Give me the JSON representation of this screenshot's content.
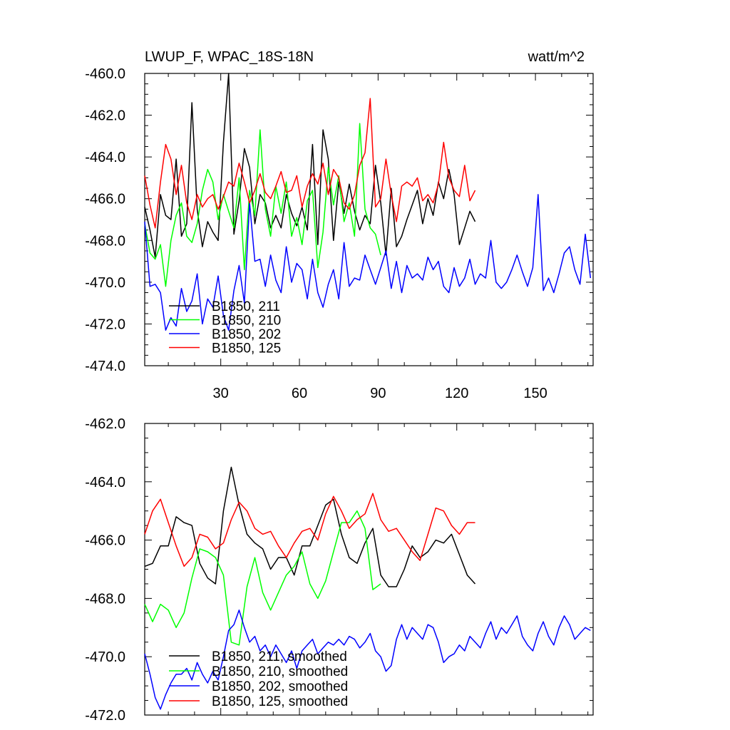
{
  "figure": {
    "title_left": "LWUP_F, WPAC_18S-18N",
    "title_right": "watt/m^2"
  },
  "chart_data": [
    {
      "type": "line",
      "title": "LWUP_F, WPAC_18S-18N",
      "units": "watt/m^2",
      "xlabel": "",
      "ylabel": "",
      "xlim": [
        1,
        172
      ],
      "ylim": [
        -474,
        -460
      ],
      "x_ticks": [
        30,
        60,
        90,
        120,
        150
      ],
      "x_tick_labels": [
        "30",
        "60",
        "90",
        "120",
        "150"
      ],
      "y_ticks": [
        -474,
        -472,
        -470,
        -468,
        -466,
        -464,
        -462,
        -460
      ],
      "y_tick_labels": [
        "-474.0",
        "-472.0",
        "-470.0",
        "-468.0",
        "-466.0",
        "-464.0",
        "-462.0",
        "-460.0"
      ],
      "legend_position": "bottom-left",
      "series": [
        {
          "name": "B1850, 211",
          "color": "#000000",
          "x": [
            1,
            3,
            5,
            7,
            9,
            11,
            13,
            15,
            17,
            19,
            21,
            23,
            25,
            27,
            29,
            31,
            33,
            35,
            37,
            39,
            41,
            43,
            45,
            47,
            49,
            51,
            53,
            55,
            57,
            59,
            61,
            63,
            65,
            67,
            69,
            71,
            73,
            75,
            77,
            79,
            81,
            83,
            85,
            87,
            89,
            91,
            93,
            95,
            97,
            99,
            101,
            103,
            105,
            107,
            109,
            111,
            113,
            115,
            117,
            119,
            121,
            123,
            125,
            127
          ],
          "y": [
            -466.4,
            -467.5,
            -468.8,
            -465.8,
            -466.8,
            -467.0,
            -464.1,
            -467.8,
            -467.2,
            -461.4,
            -466.5,
            -468.3,
            -467.1,
            -467.6,
            -468.0,
            -463.3,
            -460.0,
            -467.7,
            -466.1,
            -463.6,
            -464.5,
            -467.2,
            -465.8,
            -466.2,
            -467.4,
            -466.8,
            -467.4,
            -465.8,
            -466.7,
            -467.3,
            -466.4,
            -467.5,
            -463.4,
            -468.2,
            -462.7,
            -464.1,
            -468.0,
            -465.2,
            -466.7,
            -465.3,
            -466.6,
            -467.5,
            -466.8,
            -467.2,
            -464.4,
            -466.2,
            -468.7,
            -465.5,
            -468.3,
            -467.8,
            -467.0,
            -466.3,
            -465.6,
            -467.2,
            -466.0,
            -466.8,
            -465.2,
            -466.0,
            -464.6,
            -465.8,
            -468.2,
            -467.4,
            -466.6,
            -467.1
          ]
        },
        {
          "name": "B1850, 210",
          "color": "#00ff00",
          "x": [
            1,
            3,
            5,
            7,
            9,
            11,
            13,
            15,
            17,
            19,
            21,
            23,
            25,
            27,
            29,
            31,
            33,
            35,
            37,
            39,
            41,
            43,
            45,
            47,
            49,
            51,
            53,
            55,
            57,
            59,
            61,
            63,
            65,
            67,
            69,
            71,
            73,
            75,
            77,
            79,
            81,
            83,
            85,
            87,
            89,
            91
          ],
          "y": [
            -467.2,
            -468.6,
            -468.9,
            -468.2,
            -470.2,
            -468.0,
            -466.8,
            -466.2,
            -467.8,
            -468.1,
            -467.2,
            -465.6,
            -464.6,
            -465.2,
            -467.0,
            -465.8,
            -466.6,
            -467.4,
            -465.0,
            -469.4,
            -465.6,
            -466.8,
            -462.7,
            -466.5,
            -467.8,
            -465.4,
            -466.7,
            -465.2,
            -467.8,
            -466.9,
            -468.2,
            -466.1,
            -465.6,
            -469.3,
            -467.6,
            -464.5,
            -466.3,
            -464.9,
            -467.1,
            -466.2,
            -467.8,
            -462.4,
            -466.5,
            -467.4,
            -467.7,
            -468.7
          ]
        },
        {
          "name": "B1850, 202",
          "color": "#0000ff",
          "x": [
            1,
            3,
            5,
            7,
            9,
            11,
            13,
            15,
            17,
            19,
            21,
            23,
            25,
            27,
            29,
            31,
            33,
            35,
            37,
            39,
            41,
            43,
            45,
            47,
            49,
            51,
            53,
            55,
            57,
            59,
            61,
            63,
            65,
            67,
            69,
            71,
            73,
            75,
            77,
            79,
            81,
            83,
            85,
            87,
            89,
            91,
            93,
            95,
            97,
            99,
            101,
            103,
            105,
            107,
            109,
            111,
            113,
            115,
            117,
            119,
            121,
            123,
            125,
            127,
            129,
            131,
            133,
            135,
            137,
            139,
            141,
            143,
            145,
            147,
            149,
            151,
            153,
            155,
            157,
            159,
            161,
            163,
            165,
            167,
            169,
            171
          ],
          "y": [
            -467.1,
            -470.2,
            -470.1,
            -470.5,
            -472.3,
            -471.7,
            -472.1,
            -470.3,
            -471.4,
            -470.9,
            -469.6,
            -472.0,
            -470.8,
            -471.2,
            -469.7,
            -471.6,
            -472.3,
            -470.4,
            -469.2,
            -471.0,
            -466.2,
            -469.0,
            -468.9,
            -470.2,
            -468.7,
            -469.9,
            -470.5,
            -468.3,
            -470.0,
            -469.1,
            -469.4,
            -470.8,
            -468.9,
            -470.5,
            -471.2,
            -470.1,
            -469.4,
            -470.8,
            -468.1,
            -470.2,
            -469.8,
            -469.9,
            -468.7,
            -469.4,
            -470.1,
            -469.3,
            -468.5,
            -470.3,
            -469.0,
            -470.5,
            -469.2,
            -469.8,
            -469.6,
            -469.9,
            -468.8,
            -469.4,
            -469.0,
            -470.2,
            -470.5,
            -469.3,
            -470.2,
            -469.8,
            -468.9,
            -470.1,
            -469.6,
            -469.8,
            -468.0,
            -470.0,
            -470.3,
            -470.0,
            -469.4,
            -468.7,
            -469.5,
            -470.2,
            -469.3,
            -465.8,
            -470.4,
            -469.8,
            -470.5,
            -469.6,
            -468.6,
            -468.3,
            -469.4,
            -470.1,
            -467.7,
            -469.8
          ]
        },
        {
          "name": "B1850, 125",
          "color": "#ff0000",
          "x": [
            1,
            3,
            5,
            7,
            9,
            11,
            13,
            15,
            17,
            19,
            21,
            23,
            25,
            27,
            29,
            31,
            33,
            35,
            37,
            39,
            41,
            43,
            45,
            47,
            49,
            51,
            53,
            55,
            57,
            59,
            61,
            63,
            65,
            67,
            69,
            71,
            73,
            75,
            77,
            79,
            81,
            83,
            85,
            87,
            89,
            91,
            93,
            95,
            97,
            99,
            101,
            103,
            105,
            107,
            109,
            111,
            113,
            115,
            117,
            119,
            121,
            123,
            125,
            127
          ],
          "y": [
            -464.9,
            -466.3,
            -467.4,
            -465.2,
            -463.4,
            -464.1,
            -465.8,
            -464.4,
            -466.2,
            -467.0,
            -465.8,
            -466.4,
            -466.0,
            -465.8,
            -466.5,
            -465.9,
            -465.2,
            -465.4,
            -464.3,
            -465.2,
            -466.2,
            -465.6,
            -464.8,
            -465.7,
            -466.0,
            -465.4,
            -464.7,
            -465.7,
            -465.6,
            -464.9,
            -466.4,
            -465.4,
            -464.8,
            -465.3,
            -464.3,
            -465.8,
            -464.6,
            -465.0,
            -466.2,
            -466.5,
            -465.8,
            -464.4,
            -463.8,
            -461.2,
            -466.4,
            -466.0,
            -464.1,
            -465.8,
            -467.1,
            -465.4,
            -465.2,
            -465.4,
            -465.0,
            -466.1,
            -465.8,
            -466.2,
            -465.3,
            -463.3,
            -465.0,
            -465.6,
            -465.9,
            -464.4,
            -466.1,
            -465.6
          ]
        }
      ]
    },
    {
      "type": "line",
      "title": "",
      "xlabel": "",
      "ylabel": "",
      "xlim": [
        1,
        172
      ],
      "ylim": [
        -472,
        -462
      ],
      "x_ticks": [
        30,
        60,
        90,
        120,
        150
      ],
      "y_ticks": [
        -472,
        -470,
        -468,
        -466,
        -464,
        -462
      ],
      "y_tick_labels": [
        "-472.0",
        "-470.0",
        "-468.0",
        "-466.0",
        "-464.0",
        "-462.0"
      ],
      "legend_position": "bottom-left",
      "series": [
        {
          "name": "B1850, 211, smoothed",
          "color": "#000000",
          "x": [
            1,
            4,
            7,
            10,
            13,
            16,
            19,
            22,
            25,
            28,
            31,
            34,
            37,
            40,
            43,
            46,
            49,
            52,
            55,
            58,
            61,
            64,
            67,
            70,
            73,
            76,
            79,
            82,
            85,
            88,
            91,
            94,
            97,
            100,
            103,
            106,
            109,
            112,
            115,
            118,
            121,
            124,
            127
          ],
          "y": [
            -466.9,
            -466.8,
            -466.2,
            -466.2,
            -465.2,
            -465.4,
            -465.5,
            -466.8,
            -467.3,
            -467.5,
            -465.0,
            -463.5,
            -464.8,
            -465.8,
            -466.1,
            -466.3,
            -467.0,
            -466.6,
            -466.6,
            -467.2,
            -466.2,
            -466.2,
            -465.5,
            -464.8,
            -464.6,
            -465.8,
            -466.6,
            -466.8,
            -466.1,
            -465.6,
            -467.2,
            -467.6,
            -467.6,
            -467.0,
            -466.2,
            -466.6,
            -466.4,
            -466.0,
            -466.1,
            -465.8,
            -466.5,
            -467.2,
            -467.5
          ]
        },
        {
          "name": "B1850, 210, smoothed",
          "color": "#00ff00",
          "x": [
            1,
            4,
            7,
            10,
            13,
            16,
            19,
            22,
            25,
            28,
            31,
            34,
            37,
            40,
            43,
            46,
            49,
            52,
            55,
            58,
            61,
            64,
            67,
            70,
            73,
            76,
            79,
            82,
            85,
            88,
            91
          ],
          "y": [
            -468.2,
            -468.8,
            -468.2,
            -468.4,
            -469.0,
            -468.5,
            -467.3,
            -466.3,
            -466.4,
            -466.6,
            -467.2,
            -469.5,
            -469.6,
            -467.6,
            -466.6,
            -467.8,
            -468.4,
            -467.8,
            -467.2,
            -466.9,
            -466.4,
            -467.5,
            -468.0,
            -467.4,
            -466.4,
            -465.4,
            -465.4,
            -465.0,
            -465.6,
            -467.7,
            -467.5
          ]
        },
        {
          "name": "B1850, 202, smoothed",
          "color": "#0000ff",
          "x": [
            1,
            3,
            5,
            7,
            9,
            11,
            13,
            15,
            17,
            19,
            21,
            23,
            25,
            27,
            29,
            31,
            33,
            35,
            37,
            39,
            41,
            43,
            45,
            47,
            49,
            51,
            53,
            55,
            57,
            59,
            61,
            63,
            65,
            67,
            69,
            71,
            73,
            75,
            77,
            79,
            81,
            83,
            85,
            87,
            89,
            91,
            93,
            95,
            97,
            99,
            101,
            103,
            105,
            107,
            109,
            111,
            113,
            115,
            117,
            119,
            121,
            123,
            125,
            127,
            129,
            131,
            133,
            135,
            137,
            139,
            141,
            143,
            145,
            147,
            149,
            151,
            153,
            155,
            157,
            159,
            161,
            163,
            165,
            167,
            169,
            171
          ],
          "y": [
            -469.9,
            -470.6,
            -471.4,
            -471.8,
            -471.3,
            -470.9,
            -470.6,
            -470.6,
            -470.4,
            -470.8,
            -470.2,
            -470.6,
            -470.9,
            -470.5,
            -470.8,
            -470.0,
            -469.1,
            -468.9,
            -468.4,
            -469.0,
            -469.5,
            -469.3,
            -469.8,
            -469.6,
            -470.0,
            -469.6,
            -469.9,
            -470.2,
            -469.8,
            -470.4,
            -469.8,
            -469.6,
            -469.4,
            -469.9,
            -469.7,
            -469.5,
            -469.6,
            -469.4,
            -469.6,
            -469.3,
            -469.4,
            -469.7,
            -469.5,
            -469.2,
            -469.8,
            -470.0,
            -470.5,
            -470.3,
            -469.4,
            -468.9,
            -469.4,
            -469.0,
            -469.2,
            -469.4,
            -468.9,
            -469.0,
            -469.5,
            -470.2,
            -470.0,
            -469.9,
            -469.6,
            -469.8,
            -469.3,
            -469.5,
            -469.7,
            -469.2,
            -468.8,
            -469.4,
            -469.0,
            -469.2,
            -468.9,
            -468.6,
            -469.3,
            -469.6,
            -469.8,
            -469.2,
            -468.8,
            -469.3,
            -469.6,
            -469.0,
            -468.6,
            -468.9,
            -469.4,
            -469.2,
            -469.0,
            -469.1
          ]
        },
        {
          "name": "B1850, 125, smoothed",
          "color": "#ff0000",
          "x": [
            1,
            4,
            7,
            10,
            13,
            16,
            19,
            22,
            25,
            28,
            31,
            34,
            37,
            40,
            43,
            46,
            49,
            52,
            55,
            58,
            61,
            64,
            67,
            70,
            73,
            76,
            79,
            82,
            85,
            88,
            91,
            94,
            97,
            100,
            103,
            106,
            109,
            112,
            115,
            118,
            121,
            124,
            127
          ],
          "y": [
            -465.8,
            -465.0,
            -464.6,
            -465.4,
            -466.2,
            -466.9,
            -466.6,
            -465.8,
            -465.9,
            -466.3,
            -466.1,
            -465.3,
            -464.7,
            -465.0,
            -465.6,
            -465.8,
            -465.7,
            -466.2,
            -466.6,
            -466.1,
            -465.7,
            -465.6,
            -466.0,
            -465.1,
            -464.5,
            -465.0,
            -465.6,
            -465.3,
            -465.1,
            -464.4,
            -465.3,
            -465.7,
            -465.6,
            -466.0,
            -466.4,
            -466.7,
            -465.8,
            -464.9,
            -465.0,
            -465.5,
            -465.8,
            -465.4,
            -465.4
          ]
        }
      ]
    }
  ]
}
